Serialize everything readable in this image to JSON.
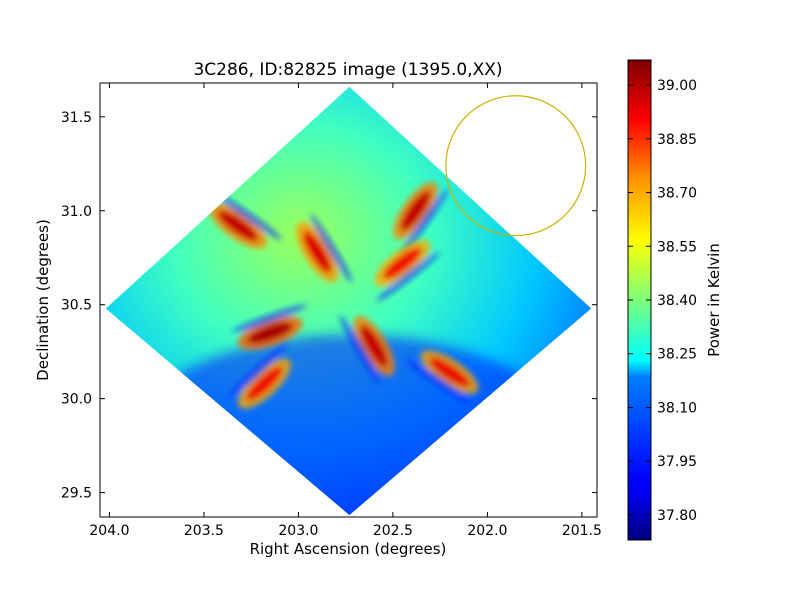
{
  "chart_data": {
    "type": "heatmap",
    "title": "3C286, ID:82825 image (1395.0,XX)",
    "xlabel": "Right Ascension (degrees)",
    "ylabel": "Declination (degrees)",
    "xlim": [
      204.05,
      201.42
    ],
    "ylim": [
      29.37,
      31.68
    ],
    "x_ticks": [
      204.0,
      203.5,
      203.0,
      202.5,
      202.0,
      201.5
    ],
    "x_tick_labels": [
      "204.0",
      "203.5",
      "203.0",
      "202.5",
      "202.0",
      "201.5"
    ],
    "y_ticks": [
      29.5,
      30.0,
      30.5,
      31.0,
      31.5
    ],
    "y_tick_labels": [
      "29.5",
      "30.0",
      "30.5",
      "31.0",
      "31.5"
    ],
    "grid": false,
    "colormap": "jet",
    "colorbar": {
      "label": "Power in Kelvin",
      "min": 37.73,
      "max": 39.07,
      "ticks": [
        37.8,
        37.95,
        38.1,
        38.25,
        38.4,
        38.55,
        38.7,
        38.85,
        39.0
      ],
      "tick_labels": [
        "37.80",
        "37.95",
        "38.10",
        "38.25",
        "38.40",
        "38.55",
        "38.70",
        "38.85",
        "39.00"
      ]
    },
    "footprint_corners": [
      {
        "ra": 202.73,
        "dec": 31.66
      },
      {
        "ra": 201.45,
        "dec": 30.48
      },
      {
        "ra": 202.73,
        "dec": 29.38
      },
      {
        "ra": 204.02,
        "dec": 30.48
      }
    ],
    "field_center": {
      "ra": 202.73,
      "dec": 30.5
    },
    "background_level": 38.06,
    "features": [
      {
        "ra": 203.32,
        "dec": 30.92,
        "value": 38.98
      },
      {
        "ra": 202.9,
        "dec": 30.78,
        "value": 38.95
      },
      {
        "ra": 202.38,
        "dec": 31.0,
        "value": 38.98
      },
      {
        "ra": 202.45,
        "dec": 30.72,
        "value": 38.92
      },
      {
        "ra": 203.15,
        "dec": 30.35,
        "value": 39.02
      },
      {
        "ra": 203.18,
        "dec": 30.08,
        "value": 38.92
      },
      {
        "ra": 202.6,
        "dec": 30.28,
        "value": 38.98
      },
      {
        "ra": 202.2,
        "dec": 30.14,
        "value": 38.93
      }
    ],
    "circle_marker": {
      "ra": 201.85,
      "dec": 31.24,
      "radius_deg": 0.37,
      "color": "#c8b400"
    }
  }
}
